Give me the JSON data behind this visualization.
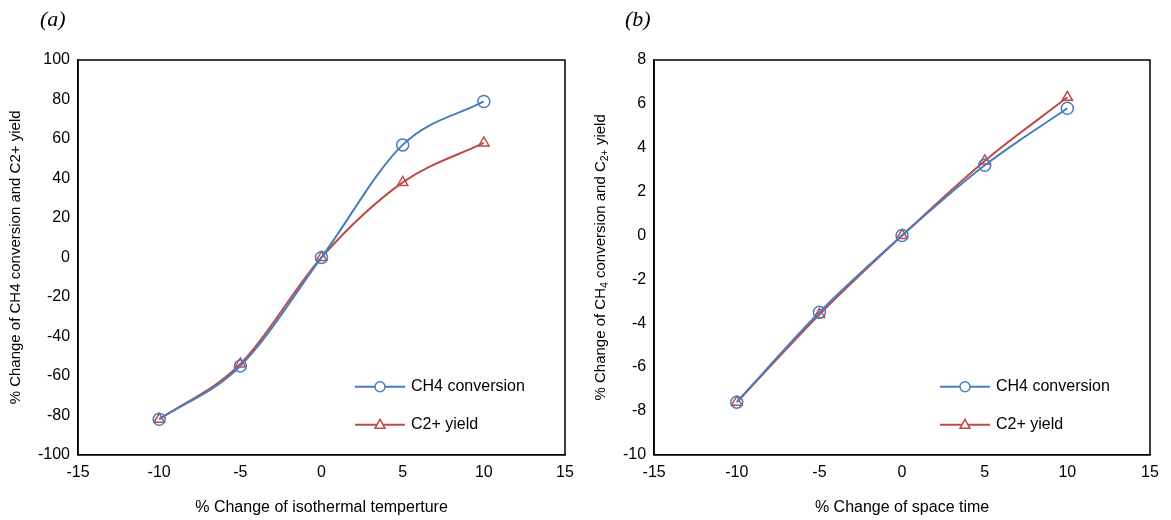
{
  "chart_data": [
    {
      "type": "line",
      "title": "(a)",
      "xlabel": "% Change of isothermal temperture",
      "ylabel": "% Change of CH4 conversion and C2+ yield",
      "x": [
        -10,
        -5,
        0,
        5,
        10
      ],
      "xlim": [
        -15,
        15
      ],
      "xticks": [
        -15,
        -10,
        -5,
        0,
        5,
        10,
        15
      ],
      "ylim": [
        -100,
        100
      ],
      "yticks": [
        -100,
        -80,
        -60,
        -40,
        -20,
        0,
        20,
        40,
        60,
        80,
        100
      ],
      "grid": false,
      "legend": "bottom right",
      "series": [
        {
          "name": "CH4 conversion",
          "color": "#4a7ebb",
          "marker": "circle",
          "values": [
            -82,
            -55,
            0,
            57,
            79
          ]
        },
        {
          "name": "C2+ yield",
          "color": "#be4b48",
          "marker": "triangle",
          "values": [
            -82,
            -54,
            0,
            38,
            58
          ]
        }
      ]
    },
    {
      "type": "line",
      "title": "(b)",
      "xlabel": "% Change of space time",
      "ylabel": "% Change of CH$_{4}$ conversion and C$_{2+}$ yield",
      "x": [
        -10,
        -5,
        0,
        5,
        10
      ],
      "xlim": [
        -15,
        15
      ],
      "xticks": [
        -15,
        -10,
        -5,
        0,
        5,
        10,
        15
      ],
      "ylim": [
        -10,
        8
      ],
      "yticks": [
        -10,
        -8,
        -6,
        -4,
        -2,
        0,
        2,
        4,
        6,
        8
      ],
      "grid": false,
      "legend": "bottom right",
      "series": [
        {
          "name": "CH4 conversion",
          "color": "#4a7ebb",
          "marker": "circle",
          "values": [
            -7.6,
            -3.5,
            0,
            3.2,
            5.8
          ]
        },
        {
          "name": "C2+ yield",
          "color": "#be4b48",
          "marker": "triangle",
          "values": [
            -7.6,
            -3.6,
            0,
            3.4,
            6.3
          ]
        }
      ]
    }
  ]
}
